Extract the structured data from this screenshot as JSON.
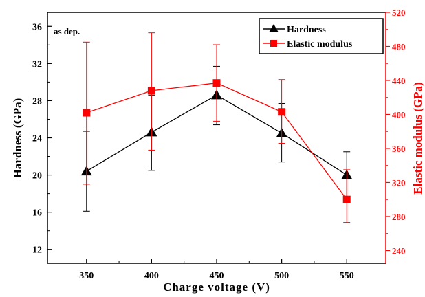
{
  "chart_data": {
    "type": "line",
    "annotation": "as dep.",
    "xlabel": "Charge voltage (V)",
    "x": [
      350,
      400,
      450,
      500,
      550
    ],
    "xticks": [
      "350",
      "400",
      "450",
      "500",
      "550"
    ],
    "xlim": [
      320,
      580
    ],
    "axes": {
      "left": {
        "label": "Hardness (GPa)",
        "ylim": [
          10.5,
          37.5
        ],
        "ticks": [
          "12",
          "16",
          "20",
          "24",
          "28",
          "32",
          "36"
        ],
        "color": "#000000"
      },
      "right": {
        "label": "Elastic modulus (GPa)",
        "ylim": [
          225,
          520
        ],
        "ticks": [
          "240",
          "280",
          "320",
          "360",
          "400",
          "440",
          "480",
          "520"
        ],
        "color": "#ff0000"
      }
    },
    "series": [
      {
        "name": "Hardness",
        "axis": "left",
        "marker": "triangle",
        "color": "#000000",
        "values": [
          20.4,
          24.6,
          28.6,
          24.5,
          20.0
        ],
        "err_low": [
          16.1,
          20.5,
          25.4,
          21.4,
          17.4
        ],
        "err_high": [
          24.7,
          28.6,
          31.7,
          27.7,
          22.5
        ]
      },
      {
        "name": "Elastic modulus",
        "axis": "right",
        "marker": "square",
        "color": "#ff0000",
        "values": [
          402,
          428,
          437,
          403,
          300
        ],
        "err_low": [
          318,
          358,
          392,
          366,
          273
        ],
        "err_high": [
          485,
          496,
          482,
          441,
          335
        ]
      }
    ],
    "legend_position": "top-right",
    "grid": false
  }
}
